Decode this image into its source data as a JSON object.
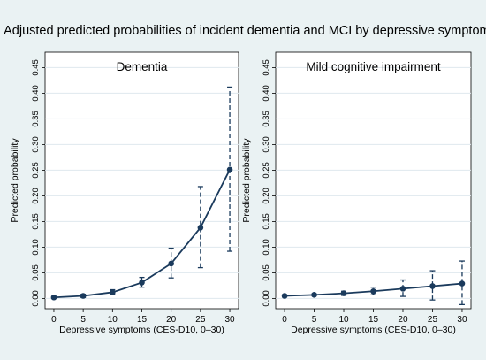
{
  "figure_title": "Adjusted predicted probabilities of incident dementia and MCI by depressive symptoms",
  "colors": {
    "background": "#eaf2f3",
    "plot_background": "#ffffff",
    "series": "#1a3a5c",
    "grid": "#dfe8ee"
  },
  "chart_data": [
    {
      "type": "line",
      "title": "Dementia",
      "xlabel": "Depressive symptoms (CES-D10, 0–30)",
      "ylabel": "Predicted probability",
      "x": [
        0,
        5,
        10,
        15,
        20,
        25,
        30
      ],
      "series": [
        {
          "values": [
            0.002,
            0.005,
            0.012,
            0.031,
            0.068,
            0.138,
            0.251
          ],
          "ci_low": [
            0.0,
            0.002,
            0.008,
            0.022,
            0.04,
            0.06,
            0.092
          ],
          "ci_high": [
            0.004,
            0.008,
            0.017,
            0.041,
            0.098,
            0.218,
            0.412
          ]
        }
      ],
      "xticks": [
        0,
        5,
        10,
        15,
        20,
        25,
        30
      ],
      "yticks": [
        "0.00",
        "0.05",
        "0.10",
        "0.15",
        "0.20",
        "0.25",
        "0.30",
        "0.35",
        "0.40",
        "0.45"
      ],
      "xlim": [
        -1.5,
        31.5
      ],
      "ylim": [
        -0.02,
        0.48
      ],
      "grid": true,
      "error_bars": "dashed"
    },
    {
      "type": "line",
      "title": "Mild cognitive impairment",
      "xlabel": "Depressive symptoms (CES-D10, 0–30)",
      "ylabel": "Predicted probability",
      "x": [
        0,
        5,
        10,
        15,
        20,
        25,
        30
      ],
      "series": [
        {
          "values": [
            0.005,
            0.007,
            0.01,
            0.014,
            0.019,
            0.024,
            0.029
          ],
          "ci_low": [
            0.003,
            0.005,
            0.006,
            0.007,
            0.004,
            -0.003,
            -0.012
          ],
          "ci_high": [
            0.007,
            0.009,
            0.014,
            0.022,
            0.036,
            0.054,
            0.073
          ]
        }
      ],
      "xticks": [
        0,
        5,
        10,
        15,
        20,
        25,
        30
      ],
      "yticks": [
        "0.00",
        "0.05",
        "0.10",
        "0.15",
        "0.20",
        "0.25",
        "0.30",
        "0.35",
        "0.40",
        "0.45"
      ],
      "xlim": [
        -1.5,
        31.5
      ],
      "ylim": [
        -0.02,
        0.48
      ],
      "grid": true,
      "error_bars": "dashed"
    }
  ]
}
